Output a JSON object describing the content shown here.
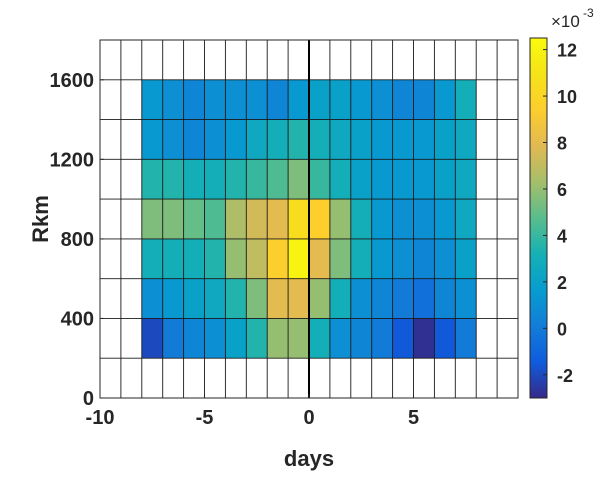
{
  "chart_data": {
    "type": "heatmap",
    "title": "",
    "xlabel": "days",
    "ylabel": "Rkm",
    "xlim": [
      -10,
      10
    ],
    "ylim": [
      0,
      1800
    ],
    "x_ticks": [
      -10,
      -5,
      0,
      5
    ],
    "y_ticks": [
      0,
      400,
      800,
      1200,
      1600
    ],
    "x_tick_labels": [
      "-10",
      "-5",
      "0",
      "5"
    ],
    "y_tick_labels": [
      "0",
      "400",
      "800",
      "1200",
      "1600"
    ],
    "x_bin_width": 1,
    "y_bin_height": 200,
    "vertical_reference_line_x": 0,
    "colormap": "parula",
    "x_centers": [
      -7.5,
      -6.5,
      -5.5,
      -4.5,
      -3.5,
      -2.5,
      -1.5,
      -0.5,
      0.5,
      1.5,
      2.5,
      3.5,
      4.5,
      5.5,
      6.5,
      7.5
    ],
    "y_centers": [
      300,
      500,
      700,
      900,
      1100,
      1300,
      1500
    ],
    "values_e-3": [
      [
        -2.0,
        0.0,
        0.5,
        1.0,
        2.0,
        3.5,
        6.0,
        6.0,
        3.0,
        1.0,
        0.5,
        0.0,
        -1.5,
        -2.8,
        -1.5,
        0.0
      ],
      [
        1.0,
        1.5,
        2.0,
        2.5,
        3.5,
        5.5,
        8.0,
        8.0,
        6.0,
        3.0,
        1.0,
        0.5,
        0.0,
        -0.5,
        0.5,
        1.0
      ],
      [
        3.0,
        3.0,
        3.0,
        3.5,
        6.0,
        7.0,
        9.5,
        12.0,
        8.0,
        5.5,
        3.0,
        1.5,
        1.0,
        0.5,
        1.0,
        2.0
      ],
      [
        5.5,
        5.5,
        5.0,
        4.5,
        6.5,
        7.5,
        8.0,
        10.5,
        9.5,
        6.0,
        3.0,
        1.5,
        1.0,
        1.0,
        1.5,
        2.5
      ],
      [
        3.5,
        3.5,
        3.0,
        3.0,
        3.5,
        4.0,
        4.5,
        5.5,
        4.0,
        3.0,
        2.0,
        1.5,
        1.5,
        1.5,
        2.0,
        2.5
      ],
      [
        1.5,
        1.0,
        0.5,
        1.0,
        1.5,
        2.5,
        3.0,
        3.5,
        3.0,
        2.5,
        2.0,
        1.5,
        1.5,
        1.5,
        2.0,
        2.5
      ],
      [
        1.5,
        1.0,
        0.5,
        1.0,
        1.0,
        1.0,
        0.5,
        1.5,
        2.0,
        2.0,
        1.5,
        1.0,
        0.5,
        0.5,
        1.5,
        3.0
      ]
    ],
    "colorbar": {
      "clim_e-3": [
        -3,
        12.5
      ],
      "ticks": [
        -2,
        0,
        2,
        4,
        6,
        8,
        10,
        12
      ],
      "tick_labels": [
        "-2",
        "0",
        "2",
        "4",
        "6",
        "8",
        "10",
        "12"
      ],
      "exponent_prefix": "×10",
      "exponent": "-3"
    }
  }
}
